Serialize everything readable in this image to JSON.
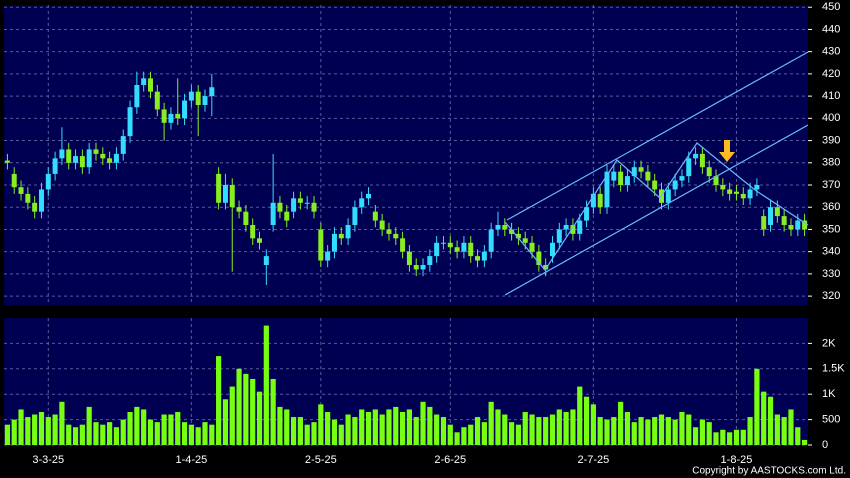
{
  "chart_data": [
    {
      "type": "candlestick",
      "colors": {
        "up": "#33ddff",
        "down": "#88ee22"
      },
      "ylim": [
        316,
        451
      ],
      "yticks": [
        320,
        330,
        340,
        350,
        360,
        370,
        380,
        390,
        400,
        410,
        420,
        430,
        440,
        450
      ],
      "grid": true,
      "open": [
        381,
        375,
        369,
        366,
        362,
        358,
        368,
        375,
        382,
        386,
        380,
        383,
        378,
        386,
        384,
        382,
        380,
        384,
        392,
        405,
        415,
        418,
        412,
        404,
        398,
        402,
        400,
        408,
        412,
        406,
        410,
        375,
        362,
        370,
        360,
        358,
        352,
        346,
        334,
        352,
        362,
        358,
        358,
        364,
        362,
        362,
        350,
        336,
        340,
        348,
        346,
        352,
        360,
        364,
        358,
        354,
        350,
        348,
        346,
        340,
        334,
        332,
        334,
        338,
        344,
        344,
        342,
        340,
        344,
        338,
        336,
        340,
        350,
        352,
        350,
        348,
        346,
        344,
        340,
        334,
        338,
        344,
        350,
        352,
        348,
        354,
        360,
        366,
        360,
        372,
        376,
        370,
        374,
        378,
        376,
        372,
        368,
        362,
        368,
        372,
        374,
        382,
        384,
        378,
        374,
        370,
        368,
        367,
        366,
        364,
        368,
        356,
        352,
        360,
        356,
        352,
        350,
        354
      ],
      "high": [
        384,
        378,
        372,
        369,
        365,
        371,
        378,
        385,
        396,
        389,
        386,
        386,
        389,
        389,
        387,
        385,
        387,
        395,
        408,
        421,
        421,
        421,
        415,
        407,
        405,
        418,
        411,
        415,
        415,
        413,
        420,
        378,
        375,
        373,
        363,
        361,
        355,
        349,
        341,
        384,
        365,
        361,
        367,
        367,
        365,
        365,
        353,
        343,
        351,
        351,
        355,
        363,
        367,
        369,
        361,
        357,
        353,
        351,
        349,
        343,
        337,
        337,
        341,
        347,
        347,
        347,
        345,
        347,
        347,
        341,
        343,
        353,
        358,
        355,
        353,
        351,
        349,
        347,
        343,
        337,
        347,
        353,
        355,
        355,
        357,
        363,
        369,
        369,
        379,
        379,
        379,
        377,
        381,
        381,
        379,
        375,
        371,
        371,
        375,
        377,
        385,
        387,
        387,
        381,
        377,
        373,
        371,
        370,
        369,
        371,
        373,
        359,
        363,
        363,
        359,
        355,
        357,
        357
      ],
      "low": [
        377,
        366,
        363,
        359,
        355,
        355,
        365,
        372,
        379,
        377,
        377,
        375,
        375,
        381,
        379,
        377,
        377,
        381,
        389,
        402,
        412,
        409,
        401,
        390,
        395,
        397,
        397,
        405,
        392,
        403,
        401,
        359,
        359,
        331,
        355,
        349,
        343,
        341,
        325,
        349,
        355,
        351,
        355,
        359,
        359,
        355,
        333,
        333,
        337,
        343,
        343,
        349,
        357,
        361,
        351,
        347,
        345,
        343,
        337,
        331,
        329,
        329,
        331,
        335,
        341,
        339,
        337,
        337,
        335,
        333,
        333,
        337,
        347,
        347,
        345,
        343,
        341,
        337,
        331,
        329,
        335,
        341,
        347,
        345,
        345,
        351,
        357,
        357,
        357,
        369,
        367,
        367,
        371,
        373,
        369,
        365,
        359,
        359,
        365,
        369,
        371,
        379,
        375,
        371,
        367,
        365,
        363,
        363,
        361,
        361,
        365,
        347,
        349,
        353,
        349,
        347,
        347,
        347
      ],
      "close": [
        380,
        369,
        366,
        362,
        358,
        368,
        375,
        382,
        386,
        380,
        383,
        378,
        386,
        384,
        382,
        380,
        384,
        392,
        405,
        415,
        418,
        412,
        404,
        398,
        402,
        400,
        408,
        412,
        406,
        410,
        414,
        362,
        370,
        360,
        358,
        352,
        346,
        344,
        338,
        362,
        358,
        354,
        364,
        362,
        362,
        358,
        336,
        340,
        348,
        346,
        352,
        360,
        364,
        366,
        354,
        350,
        348,
        346,
        340,
        334,
        332,
        334,
        338,
        344,
        344,
        342,
        340,
        344,
        338,
        336,
        340,
        350,
        352,
        350,
        348,
        346,
        344,
        340,
        334,
        332,
        344,
        350,
        352,
        348,
        354,
        360,
        366,
        360,
        376,
        376,
        370,
        374,
        378,
        376,
        372,
        368,
        362,
        368,
        372,
        374,
        382,
        384,
        378,
        374,
        370,
        368,
        366,
        366,
        364,
        368,
        370,
        350,
        360,
        356,
        352,
        350,
        354,
        350
      ]
    },
    {
      "type": "bar",
      "color": "#77ff11",
      "ylim": [
        0,
        2500
      ],
      "yticks": [
        0,
        500,
        {
          "value": 1000,
          "label": "1K"
        },
        {
          "value": 1500,
          "label": "1.5K"
        },
        {
          "value": 2000,
          "label": "2K"
        }
      ],
      "grid": true,
      "categories": [
        null,
        null,
        null,
        null,
        null,
        null,
        "3-3-25",
        null,
        null,
        null,
        null,
        null,
        null,
        null,
        null,
        null,
        null,
        null,
        null,
        null,
        null,
        null,
        null,
        null,
        null,
        null,
        null,
        "1-4-25",
        null,
        null,
        null,
        null,
        null,
        null,
        null,
        null,
        null,
        null,
        null,
        null,
        null,
        null,
        null,
        null,
        null,
        null,
        "2-5-25",
        null,
        null,
        null,
        null,
        null,
        null,
        null,
        null,
        null,
        null,
        null,
        null,
        null,
        null,
        null,
        null,
        null,
        null,
        "2-6-25",
        null,
        null,
        null,
        null,
        null,
        null,
        null,
        null,
        null,
        null,
        null,
        null,
        null,
        null,
        null,
        null,
        null,
        null,
        null,
        null,
        "2-7-25",
        null,
        null,
        null,
        null,
        null,
        null,
        null,
        null,
        null,
        null,
        null,
        null,
        null,
        null,
        null,
        null,
        null,
        null,
        null,
        null,
        "1-8-25",
        null,
        null,
        null,
        null,
        null,
        null,
        null,
        null,
        null,
        null
      ],
      "values": [
        400,
        500,
        700,
        550,
        600,
        650,
        550,
        600,
        850,
        400,
        350,
        400,
        750,
        450,
        400,
        450,
        350,
        500,
        650,
        750,
        700,
        500,
        450,
        600,
        600,
        650,
        450,
        400,
        350,
        450,
        400,
        1750,
        900,
        1150,
        1500,
        1400,
        1300,
        1050,
        2350,
        1300,
        750,
        700,
        550,
        550,
        400,
        450,
        800,
        650,
        500,
        400,
        600,
        550,
        700,
        650,
        700,
        600,
        700,
        750,
        650,
        700,
        550,
        850,
        750,
        600,
        550,
        400,
        250,
        350,
        400,
        550,
        450,
        850,
        700,
        600,
        450,
        400,
        650,
        600,
        550,
        550,
        600,
        700,
        650,
        700,
        1150,
        950,
        800,
        550,
        500,
        550,
        850,
        650,
        450,
        550,
        500,
        550,
        600,
        550,
        500,
        650,
        600,
        350,
        500,
        450,
        250,
        300,
        250,
        300,
        300,
        550,
        1500,
        1050,
        950,
        600,
        550,
        700,
        350,
        100
      ]
    }
  ],
  "copyright": "Copyright by AASTOCKS.com Ltd."
}
